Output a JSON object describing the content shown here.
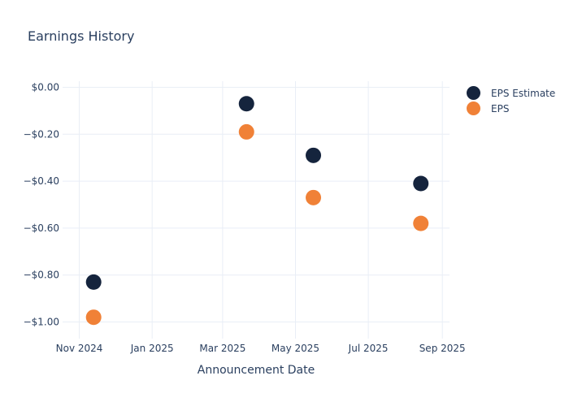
{
  "colors": {
    "background": "#ffffff",
    "text": "#2a3f5f",
    "grid": "#e9eef6",
    "eps_estimate": "#15243d",
    "eps": "#f08137"
  },
  "chart_data": {
    "type": "scatter",
    "title": "Earnings History",
    "xlabel": "Announcement Date",
    "ylabel": "",
    "grid": true,
    "legend_position": "outside-top-right",
    "marker_radius": 9.5,
    "x_range": [
      "2024-10-18",
      "2025-09-07"
    ],
    "y_range": [
      -1.071,
      0.026
    ],
    "x_ticks": [
      {
        "date": "2024-11-01",
        "label": "Nov 2024"
      },
      {
        "date": "2025-01-01",
        "label": "Jan 2025"
      },
      {
        "date": "2025-03-01",
        "label": "Mar 2025"
      },
      {
        "date": "2025-05-01",
        "label": "May 2025"
      },
      {
        "date": "2025-07-01",
        "label": "Jul 2025"
      },
      {
        "date": "2025-09-01",
        "label": "Sep 2025"
      }
    ],
    "y_ticks": [
      {
        "value": 0.0,
        "label": "$0.00"
      },
      {
        "value": -0.2,
        "label": "−$0.20"
      },
      {
        "value": -0.4,
        "label": "−$0.40"
      },
      {
        "value": -0.6,
        "label": "−$0.60"
      },
      {
        "value": -0.8,
        "label": "−$0.80"
      },
      {
        "value": -1.0,
        "label": "−$1.00"
      }
    ],
    "series": [
      {
        "name": "EPS Estimate",
        "color": "#15243d",
        "points": [
          {
            "x": "2024-11-13",
            "y": -0.83
          },
          {
            "x": "2025-03-21",
            "y": -0.07
          },
          {
            "x": "2025-05-16",
            "y": -0.29
          },
          {
            "x": "2025-08-14",
            "y": -0.41
          }
        ]
      },
      {
        "name": "EPS",
        "color": "#f08137",
        "points": [
          {
            "x": "2024-11-13",
            "y": -0.98
          },
          {
            "x": "2025-03-21",
            "y": -0.19
          },
          {
            "x": "2025-05-16",
            "y": -0.47
          },
          {
            "x": "2025-08-14",
            "y": -0.58
          }
        ]
      }
    ]
  }
}
